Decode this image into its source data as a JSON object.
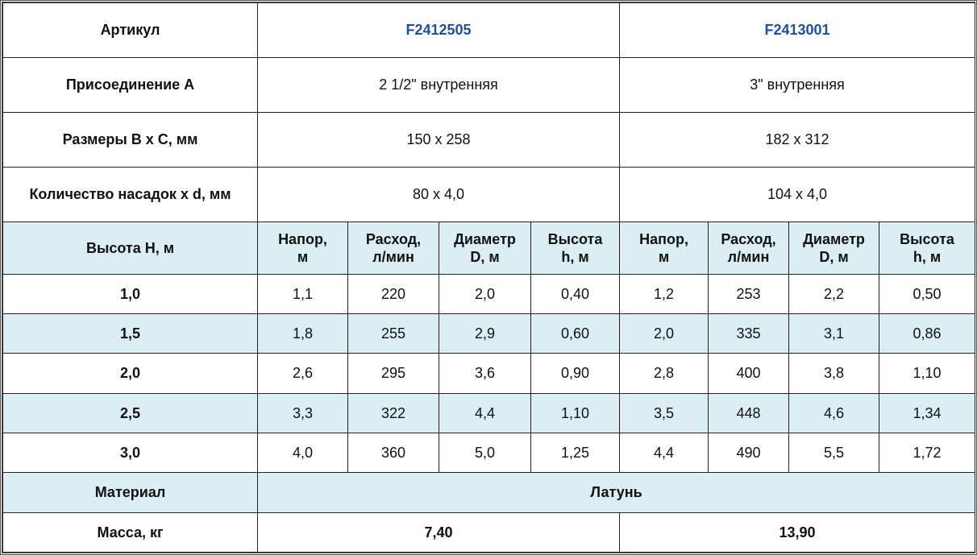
{
  "colors": {
    "accent": "#1f4e9b",
    "row_highlight": "#daeef3"
  },
  "article": {
    "label": "Артикул",
    "values": [
      "F2412505",
      "F2413001"
    ]
  },
  "connection": {
    "label": "Присоединение А",
    "values": [
      "2 1/2\" внутренняя",
      "3\" внутренняя"
    ]
  },
  "dimensions": {
    "label": "Размеры В х С, мм",
    "values": [
      "150 х 258",
      "182 х 312"
    ]
  },
  "nozzles": {
    "label": "Количество насадок х d, мм",
    "values": [
      "80 х 4,0",
      "104 х 4,0"
    ]
  },
  "height_header": {
    "label": "Высота Н, м",
    "columns": [
      [
        "Напор,",
        "м"
      ],
      [
        "Расход,",
        "л/мин"
      ],
      [
        "Диаметр",
        "D, м"
      ],
      [
        "Высота",
        "h, м"
      ],
      [
        "Напор,",
        "м"
      ],
      [
        "Расход,",
        "л/мин"
      ],
      [
        "Диаметр",
        "D, м"
      ],
      [
        "Высота",
        "h, м"
      ]
    ]
  },
  "rows": [
    {
      "h": "1,0",
      "cells": [
        "1,1",
        "220",
        "2,0",
        "0,40",
        "1,2",
        "253",
        "2,2",
        "0,50"
      ]
    },
    {
      "h": "1,5",
      "cells": [
        "1,8",
        "255",
        "2,9",
        "0,60",
        "2,0",
        "335",
        "3,1",
        "0,86"
      ]
    },
    {
      "h": "2,0",
      "cells": [
        "2,6",
        "295",
        "3,6",
        "0,90",
        "2,8",
        "400",
        "3,8",
        "1,10"
      ]
    },
    {
      "h": "2,5",
      "cells": [
        "3,3",
        "322",
        "4,4",
        "1,10",
        "3,5",
        "448",
        "4,6",
        "1,34"
      ]
    },
    {
      "h": "3,0",
      "cells": [
        "4,0",
        "360",
        "5,0",
        "1,25",
        "4,4",
        "490",
        "5,5",
        "1,72"
      ]
    }
  ],
  "material": {
    "label": "Материал",
    "value": "Латунь"
  },
  "mass": {
    "label": "Масса, кг",
    "values": [
      "7,40",
      "13,90"
    ]
  }
}
